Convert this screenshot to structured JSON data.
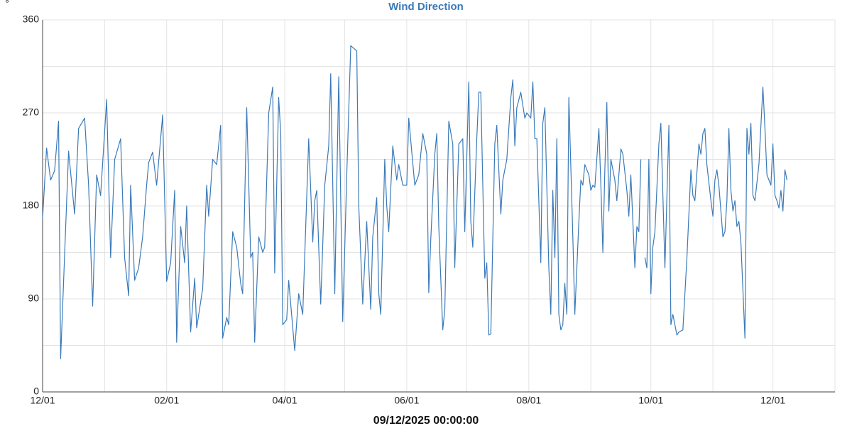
{
  "chart_data": {
    "type": "line",
    "title": "Wind Direction",
    "ylabel": "°",
    "xlabel": "09/12/2025 00:00:00",
    "color": "#3a7ab8",
    "grid": true,
    "xlim": [
      0,
      396
    ],
    "xticks": [
      {
        "value": 0,
        "label": "12/01"
      },
      {
        "value": 62,
        "label": "02/01"
      },
      {
        "value": 121,
        "label": "04/01"
      },
      {
        "value": 182,
        "label": "06/01"
      },
      {
        "value": 243,
        "label": "08/01"
      },
      {
        "value": 304,
        "label": "10/01"
      },
      {
        "value": 365,
        "label": "12/01"
      }
    ],
    "xgrid": [
      31,
      90,
      151,
      212,
      274,
      335,
      396
    ],
    "ylim": [
      0,
      360
    ],
    "yticks": [
      0,
      90,
      180,
      270,
      360
    ],
    "ygrid": [
      45,
      135,
      225,
      315
    ],
    "x": [
      0,
      2,
      4,
      6,
      8,
      9,
      13,
      16,
      18,
      21,
      23,
      25,
      27,
      29,
      32,
      34,
      36,
      39,
      41,
      43,
      44,
      46,
      48,
      50,
      52,
      53,
      55,
      57,
      60,
      62,
      64,
      66,
      67,
      69,
      71,
      72,
      74,
      76,
      77,
      80,
      82,
      83,
      85,
      87,
      89,
      90,
      92,
      93,
      95,
      97,
      99,
      100,
      102,
      104,
      105,
      106,
      108,
      110,
      111,
      113,
      115,
      116,
      118,
      119,
      120,
      122,
      123,
      126,
      128,
      130,
      133,
      135,
      136,
      137,
      139,
      141,
      143,
      144,
      146,
      148,
      150,
      152,
      154,
      157,
      158,
      160,
      162,
      164,
      165,
      167,
      168,
      169,
      171,
      172,
      173,
      175,
      177,
      178,
      180,
      182,
      183,
      186,
      188,
      190,
      192,
      193,
      194,
      196,
      197,
      198,
      200,
      201,
      203,
      205,
      206,
      208,
      210,
      211,
      213,
      214,
      215,
      217,
      218,
      219,
      221,
      222,
      223,
      224,
      226,
      227,
      229,
      230,
      232,
      234,
      235,
      236,
      237,
      239,
      241,
      242,
      244,
      245,
      246,
      247,
      249,
      250,
      251,
      253,
      254,
      255,
      256,
      257,
      258,
      259,
      260,
      261,
      262,
      263,
      265,
      266,
      268,
      269,
      270,
      271,
      273,
      274,
      275,
      276,
      278,
      279,
      280,
      281,
      282,
      283,
      284,
      286,
      287,
      289,
      290,
      292,
      293,
      294,
      296,
      297,
      298,
      299,
      300,
      301,
      302,
      303,
      304,
      305,
      306,
      308,
      309,
      311,
      313,
      314,
      315,
      317,
      318,
      320,
      322,
      324,
      325,
      326,
      328,
      329,
      330,
      331,
      332,
      334,
      335,
      336,
      337,
      338,
      340,
      341,
      342,
      343,
      344,
      345,
      346,
      347,
      348,
      349,
      351,
      352,
      353,
      354,
      355,
      356,
      358,
      360,
      361,
      362,
      363,
      364,
      365,
      366,
      367,
      368,
      369,
      370,
      371,
      372
    ],
    "values": [
      168,
      236,
      205,
      214,
      262,
      32,
      233,
      172,
      255,
      265,
      200,
      83,
      210,
      190,
      283,
      130,
      225,
      245,
      130,
      93,
      200,
      108,
      120,
      150,
      200,
      222,
      232,
      200,
      268,
      107,
      125,
      195,
      48,
      160,
      125,
      180,
      58,
      110,
      62,
      100,
      200,
      170,
      225,
      220,
      258,
      52,
      72,
      65,
      155,
      140,
      105,
      95,
      275,
      130,
      135,
      48,
      150,
      135,
      140,
      270,
      295,
      115,
      285,
      250,
      65,
      70,
      108,
      40,
      95,
      75,
      245,
      145,
      185,
      195,
      85,
      200,
      238,
      308,
      95,
      305,
      68,
      210,
      335,
      330,
      180,
      85,
      165,
      80,
      150,
      188,
      95,
      75,
      225,
      180,
      155,
      238,
      205,
      220,
      200,
      200,
      265,
      200,
      210,
      250,
      230,
      96,
      147,
      230,
      250,
      160,
      60,
      80,
      262,
      240,
      120,
      240,
      245,
      155,
      300,
      165,
      140,
      245,
      290,
      290,
      110,
      125,
      55,
      56,
      240,
      258,
      172,
      205,
      225,
      285,
      302,
      238,
      275,
      290,
      265,
      270,
      265,
      300,
      245,
      245,
      125,
      260,
      275,
      120,
      75,
      195,
      130,
      245,
      75,
      60,
      65,
      105,
      75,
      285,
      150,
      75,
      165,
      205,
      200,
      220,
      210,
      195,
      200,
      198,
      255,
      200,
      135,
      215,
      280,
      175,
      225,
      205,
      185,
      235,
      230,
      195,
      170,
      210,
      120,
      160,
      155,
      225,
      null,
      130,
      120,
      225,
      95,
      140,
      155,
      240,
      260,
      120,
      258,
      65,
      75,
      55,
      58,
      60,
      130,
      215,
      190,
      185,
      240,
      230,
      250,
      255,
      220,
      185,
      170,
      205,
      215,
      200,
      150,
      155,
      185,
      255,
      195,
      175,
      185,
      160,
      165,
      145,
      52,
      255,
      230,
      260,
      190,
      185,
      220,
      295,
      255,
      210,
      205,
      200,
      240,
      190,
      185,
      178,
      195,
      175,
      215,
      205
    ]
  }
}
